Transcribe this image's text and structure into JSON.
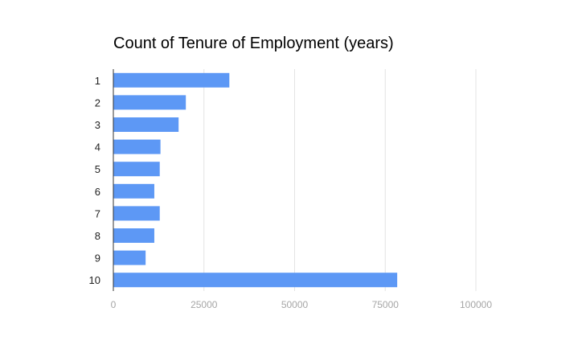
{
  "chart_data": {
    "type": "bar",
    "orientation": "horizontal",
    "title": "Count of Tenure of Employment (years)",
    "xlabel": "",
    "ylabel": "",
    "categories": [
      "1",
      "2",
      "3",
      "4",
      "5",
      "6",
      "7",
      "8",
      "9",
      "10"
    ],
    "values": [
      32000,
      20000,
      18000,
      13000,
      12800,
      11300,
      12800,
      11300,
      8900,
      78300
    ],
    "xlim": [
      0,
      100000
    ],
    "xticks": [
      "0",
      "25000",
      "50000",
      "75000",
      "100000"
    ],
    "xtick_values": [
      0,
      25000,
      50000,
      75000,
      100000
    ],
    "grid": true,
    "legend": "none",
    "bar_color": "#5d98f5",
    "grid_color": "#e3e3e3",
    "axis_color": "#333333"
  }
}
